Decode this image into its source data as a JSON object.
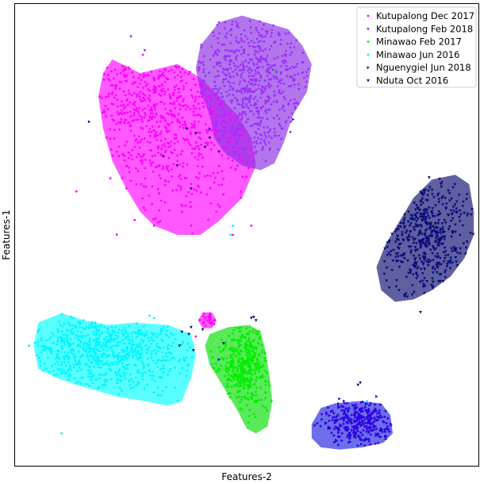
{
  "chart_data": {
    "type": "scatter",
    "title": "",
    "xlabel": "Features-2",
    "ylabel": "Features-1",
    "xlim": [
      0,
      100
    ],
    "ylim": [
      0,
      100
    ],
    "ticks": false,
    "grid": false,
    "legend_position": "top-right",
    "series": [
      {
        "name": "Kutupalong Dec 2017",
        "color": "#ff00ff",
        "hull_color": "#ff00ff",
        "marker": "circle",
        "clusters": [
          {
            "cx": 31,
            "cy": 78,
            "sx": 11,
            "sy": 12,
            "n": 700
          },
          {
            "cx": 41.5,
            "cy": 31.5,
            "sx": 1.1,
            "sy": 1.3,
            "n": 25
          }
        ],
        "hulls": [
          [
            [
              21,
              88
            ],
            [
              27,
              85
            ],
            [
              35,
              87
            ],
            [
              40,
              84
            ],
            [
              44,
              80
            ],
            [
              48,
              76
            ],
            [
              51,
              71
            ],
            [
              52,
              65
            ],
            [
              49,
              58
            ],
            [
              44,
              53
            ],
            [
              40,
              50
            ],
            [
              35,
              50
            ],
            [
              30,
              52
            ],
            [
              27,
              55
            ],
            [
              24,
              60
            ],
            [
              21,
              66
            ],
            [
              19,
              73
            ],
            [
              18,
              80
            ],
            [
              19,
              85
            ]
          ],
          [
            [
              39.5,
              31.5
            ],
            [
              40.5,
              33.2
            ],
            [
              42.5,
              33.2
            ],
            [
              43.5,
              31.5
            ],
            [
              42.5,
              29.8
            ],
            [
              40.5,
              29.8
            ]
          ]
        ]
      },
      {
        "name": "Kutupalong Feb 2018",
        "color": "#9b30ff",
        "hull_color": "#8a2be2",
        "marker": "circle",
        "clusters": [
          {
            "cx": 51,
            "cy": 82,
            "sx": 7.5,
            "sy": 8.5,
            "n": 650
          }
        ],
        "hulls": [
          [
            [
              40,
              91
            ],
            [
              44,
              96
            ],
            [
              49,
              97.5
            ],
            [
              54,
              96
            ],
            [
              59,
              94.5
            ],
            [
              62,
              91
            ],
            [
              64,
              87
            ],
            [
              63,
              81
            ],
            [
              60,
              76
            ],
            [
              58,
              70
            ],
            [
              56,
              65.5
            ],
            [
              53,
              64
            ],
            [
              49,
              65
            ],
            [
              45,
              68
            ],
            [
              43,
              71
            ],
            [
              42,
              76
            ],
            [
              40,
              81
            ],
            [
              39,
              86
            ]
          ]
        ]
      },
      {
        "name": "Minawao Feb 2017",
        "color": "#00ee00",
        "hull_color": "#00dd00",
        "marker": "circle",
        "clusters": [
          {
            "cx": 49.5,
            "cy": 22,
            "sx": 2.8,
            "sy": 4.5,
            "n": 420
          }
        ],
        "hulls": [
          [
            [
              42,
              28.5
            ],
            [
              46,
              30
            ],
            [
              50.5,
              30.5
            ],
            [
              53,
              29
            ],
            [
              54,
              25
            ],
            [
              55,
              19
            ],
            [
              55.5,
              14
            ],
            [
              54.5,
              8.5
            ],
            [
              52,
              7
            ],
            [
              50,
              8
            ],
            [
              48,
              12
            ],
            [
              45,
              17
            ],
            [
              42,
              22
            ],
            [
              41,
              26
            ]
          ]
        ]
      },
      {
        "name": "Minawao Jun 2016",
        "color": "#00f5ff",
        "hull_color": "#00ffff",
        "marker": "circle",
        "clusters": [
          {
            "cx": 19,
            "cy": 24.5,
            "sx": 9,
            "sy": 4.5,
            "n": 800
          }
        ],
        "hulls": [
          [
            [
              5,
              31
            ],
            [
              10,
              33
            ],
            [
              15,
              31.5
            ],
            [
              20,
              30.5
            ],
            [
              26,
              31
            ],
            [
              33,
              30.5
            ],
            [
              38,
              28.5
            ],
            [
              39,
              24
            ],
            [
              38,
              19
            ],
            [
              36,
              14
            ],
            [
              33,
              13
            ],
            [
              28,
              14
            ],
            [
              22,
              15
            ],
            [
              15,
              17
            ],
            [
              9,
              19
            ],
            [
              5,
              21
            ],
            [
              4,
              26
            ]
          ]
        ]
      },
      {
        "name": "Nguenygiel Jun 2018",
        "color": "#2a00e0",
        "hull_color": "#2020e0",
        "marker": "triangle-right",
        "clusters": [
          {
            "cx": 74,
            "cy": 9.5,
            "sx": 3.5,
            "sy": 2.5,
            "n": 330
          }
        ],
        "hulls": [
          [
            [
              64,
              9
            ],
            [
              66,
              12.5
            ],
            [
              69,
              13.5
            ],
            [
              74,
              14
            ],
            [
              79,
              13.5
            ],
            [
              81,
              11
            ],
            [
              81.5,
              7
            ],
            [
              79.5,
              5
            ],
            [
              75,
              4
            ],
            [
              70,
              3.5
            ],
            [
              66,
              4
            ],
            [
              64,
              6
            ]
          ]
        ]
      },
      {
        "name": "Nduta Oct 2016",
        "color": "#0a0a78",
        "hull_color": "#0b0b6e",
        "marker": "triangle-down",
        "clusters": [
          {
            "cx": 89,
            "cy": 50,
            "sx": 5,
            "sy": 6.5,
            "n": 480
          }
        ],
        "hulls": [
          [
            [
              86,
              58
            ],
            [
              90,
              62
            ],
            [
              95,
              63
            ],
            [
              98,
              61
            ],
            [
              99,
              55
            ],
            [
              99,
              50
            ],
            [
              97,
              45
            ],
            [
              94,
              41
            ],
            [
              90,
              38
            ],
            [
              86,
              36
            ],
            [
              82,
              35.5
            ],
            [
              79,
              38
            ],
            [
              78,
              43
            ],
            [
              80,
              48
            ],
            [
              83,
              53
            ]
          ]
        ]
      }
    ],
    "outliers": [
      {
        "series": 0,
        "points": [
          [
            39,
            28
          ],
          [
            47,
            50
          ],
          [
            51,
            52
          ],
          [
            30,
            52
          ],
          [
            38,
            52
          ]
        ]
      },
      {
        "series": 1,
        "points": [
          [
            25,
            93
          ],
          [
            28,
            90
          ],
          [
            57,
            74
          ],
          [
            48,
            65
          ],
          [
            56,
            84
          ]
        ]
      },
      {
        "series": 2,
        "points": [
          [
            56,
            85.5
          ]
        ]
      },
      {
        "series": 3,
        "points": [
          [
            47,
            52
          ],
          [
            46.5,
            50
          ],
          [
            10,
            7
          ],
          [
            3,
            26
          ],
          [
            30,
            32
          ],
          [
            29,
            32.5
          ],
          [
            32,
            30
          ],
          [
            76,
            14
          ],
          [
            42,
            22.5
          ]
        ]
      },
      {
        "series": 4,
        "points": [
          [
            16,
            74.5
          ],
          [
            70,
            14.5
          ],
          [
            71,
            14
          ],
          [
            78,
            15
          ],
          [
            60,
            75
          ],
          [
            42,
            73
          ],
          [
            44,
            23
          ]
        ]
      },
      {
        "series": 5,
        "points": [
          [
            39,
            72
          ],
          [
            37,
            73
          ],
          [
            32,
            67
          ],
          [
            35,
            65
          ],
          [
            38,
            60
          ],
          [
            41,
            69
          ],
          [
            42,
            71
          ],
          [
            44,
            68
          ],
          [
            36,
            29
          ],
          [
            38,
            30
          ],
          [
            35.5,
            26
          ],
          [
            37.5,
            28.5
          ],
          [
            40.5,
            29.5
          ],
          [
            38.5,
            25
          ],
          [
            51,
            32
          ],
          [
            51.5,
            32.2
          ],
          [
            74,
            17.5
          ],
          [
            74.5,
            18
          ],
          [
            52,
            31.5
          ],
          [
            45,
            26.5
          ]
        ]
      }
    ]
  }
}
